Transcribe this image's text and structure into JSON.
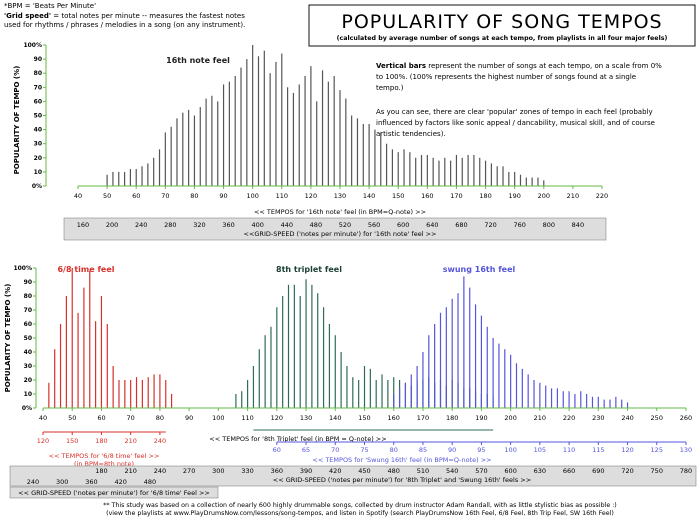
{
  "header": {
    "bpm_def": "*BPM = 'Beats Per Minute'",
    "grid_def_bold": "'Grid speed'",
    "grid_def_rest": " = total notes per minute -- measures the fastest notes",
    "grid_def_line2": "used for rhythms / phrases / melodies in a song (on any instrument).",
    "title": "POPULARITY OF SONG TEMPOS",
    "subtitle": "(calculated by average number of songs at each tempo, from playlists in all four major feels)"
  },
  "description": {
    "para1_bold": "Vertical bars",
    "para1_lines": [
      " represent the number of songs at each tempo, on a scale from 0%",
      "to 100%. (100% represents the highest number of songs found at a single",
      "tempo.)"
    ],
    "para2_lines": [
      "As you can see, there are clear 'popular' zones of tempo in each feel (probably",
      "influenced by factors like sonic appeal / dancability, musical skill, and of course",
      "artistic tendencies)."
    ]
  },
  "colors": {
    "sixteenth": "#555555",
    "six_eight": "#d8302a",
    "triplet": "#2f6b5a",
    "swung": "#5555dd",
    "axis_green": "#66bb44",
    "grid_box": "#dddddd"
  },
  "footer": {
    "line1": "** This study was based on a collection of nearly 600 highly drummable songs, collected by drum instructor Adam Randall, with as little stylistic bias as possible :)",
    "line2": "(view the playlists at www.PlayDrumsNow.com/lessons/song-tempos, and listen in Spotify (search PlayDrumsNow 16th Feel, 6/8 Feel, 8th Trip Feel, SW 16th Feel)"
  },
  "chart_data": [
    {
      "type": "bar",
      "title": "16th note feel",
      "ylabel": "POPULARITY OF TEMPO (%)",
      "xlabel": "<< TEMPOS for '16th note' feel (in BPM=Q-note) >>",
      "xlim": [
        40,
        220
      ],
      "ylim": [
        0,
        100
      ],
      "x_ticks": [
        40,
        50,
        60,
        70,
        80,
        90,
        100,
        110,
        120,
        130,
        140,
        150,
        160,
        170,
        180,
        190,
        200,
        210,
        220
      ],
      "y_ticks": [
        "0%",
        "10",
        "20",
        "30",
        "40",
        "50",
        "60",
        "70",
        "80",
        "90",
        "100%"
      ],
      "grid_speed_label": "<<GRID-SPEED ('notes per minute') for '16th note' feel >>",
      "grid_speed_ticks": [
        "160",
        "200",
        "240",
        "280",
        "320",
        "360",
        "400",
        "440",
        "480",
        "520",
        "560",
        "600",
        "640",
        "680",
        "720",
        "760",
        "800",
        "840"
      ],
      "grid_speed_tempos": [
        40,
        50,
        60,
        70,
        80,
        90,
        100,
        110,
        120,
        130,
        140,
        150,
        160,
        170,
        180,
        190,
        200,
        210
      ],
      "color": "#555555",
      "x": [
        50,
        52,
        54,
        56,
        58,
        60,
        62,
        64,
        66,
        68,
        70,
        72,
        74,
        76,
        78,
        80,
        82,
        84,
        86,
        88,
        90,
        92,
        94,
        96,
        98,
        100,
        102,
        104,
        106,
        108,
        110,
        112,
        114,
        116,
        118,
        120,
        122,
        124,
        126,
        128,
        130,
        132,
        134,
        136,
        138,
        140,
        142,
        144,
        146,
        148,
        150,
        152,
        154,
        156,
        158,
        160,
        162,
        164,
        166,
        168,
        170,
        172,
        174,
        176,
        178,
        180,
        182,
        184,
        186,
        188,
        190,
        192,
        194,
        196,
        198,
        200
      ],
      "values": [
        8,
        10,
        10,
        10,
        12,
        12,
        14,
        16,
        20,
        26,
        38,
        42,
        48,
        52,
        54,
        50,
        56,
        62,
        64,
        60,
        72,
        74,
        78,
        84,
        90,
        100,
        92,
        96,
        80,
        88,
        94,
        70,
        66,
        72,
        78,
        85,
        60,
        82,
        74,
        78,
        68,
        62,
        50,
        48,
        44,
        44,
        40,
        38,
        30,
        26,
        24,
        26,
        24,
        20,
        22,
        22,
        20,
        18,
        20,
        18,
        22,
        20,
        22,
        22,
        20,
        18,
        16,
        14,
        14,
        10,
        10,
        8,
        6,
        6,
        6,
        4
      ]
    },
    {
      "type": "bar",
      "ylabel": "POPULARITY OF TEMPO (%)",
      "xlim": [
        40,
        260
      ],
      "ylim": [
        0,
        100
      ],
      "x_ticks": [
        40,
        50,
        60,
        70,
        80,
        90,
        100,
        110,
        120,
        130,
        140,
        150,
        160,
        170,
        180,
        190,
        200,
        210,
        220,
        230,
        240,
        250,
        260
      ],
      "y_ticks": [
        "0%",
        "10",
        "20",
        "30",
        "40",
        "50",
        "60",
        "70",
        "80",
        "90",
        "100%"
      ],
      "series": [
        {
          "name": "6/8 time feel",
          "color": "#d8302a",
          "xlabel": "<< TEMPOS for '6/8 time' feel >>",
          "xlabel2": "(in BPM=8th note)",
          "axis_ticks": [
            "120",
            "150",
            "180",
            "210",
            "240"
          ],
          "axis_tempos": [
            40,
            50,
            60,
            70,
            80
          ],
          "grid_speed_ticks": [
            "240",
            "300",
            "360",
            "420",
            "480"
          ],
          "grid_speed_label": "<< GRID-SPEED ('notes per minute') for '6/8 time' Feel >>",
          "x": [
            42,
            44,
            46,
            48,
            50,
            52,
            54,
            56,
            58,
            60,
            62,
            64,
            66,
            68,
            70,
            72,
            74,
            76,
            78,
            80,
            82,
            84
          ],
          "values": [
            18,
            42,
            60,
            80,
            100,
            68,
            86,
            98,
            62,
            80,
            60,
            30,
            20,
            20,
            20,
            22,
            20,
            22,
            24,
            24,
            20,
            10
          ]
        },
        {
          "name": "8th triplet feel",
          "color": "#2f6b5a",
          "xlabel": "<< TEMPOS for '8th Triplet' feel (in BPM = Q-note) >>",
          "x": [
            106,
            108,
            110,
            112,
            114,
            116,
            118,
            120,
            122,
            124,
            126,
            128,
            130,
            132,
            134,
            136,
            138,
            140,
            142,
            144,
            146,
            148,
            150,
            152,
            154,
            156,
            158,
            160,
            162,
            164,
            166,
            168,
            170,
            172,
            174,
            176,
            178,
            180,
            182,
            184,
            186,
            188,
            190,
            192,
            194
          ],
          "values": [
            10,
            12,
            20,
            30,
            42,
            52,
            58,
            72,
            80,
            88,
            88,
            80,
            92,
            88,
            82,
            72,
            60,
            52,
            40,
            30,
            22,
            20,
            30,
            28,
            20,
            24,
            20,
            22,
            20,
            18,
            16,
            20,
            20,
            22,
            18,
            20,
            16,
            20,
            18,
            14,
            14,
            12,
            10,
            10,
            8
          ]
        },
        {
          "name": "swung 16th feel",
          "color": "#5555dd",
          "xlabel": "<< TEMPOS for 'Swung 16th' feel (in BPM=Q-note) >>",
          "axis_ticks": [
            "60",
            "65",
            "70",
            "75",
            "80",
            "85",
            "90",
            "95",
            "100",
            "105",
            "110",
            "115",
            "120",
            "125",
            "130"
          ],
          "axis_tempos": [
            120,
            130,
            140,
            150,
            160,
            170,
            180,
            190,
            200,
            210,
            220,
            230,
            240,
            250,
            260
          ],
          "x": [
            160,
            162,
            164,
            166,
            168,
            170,
            172,
            174,
            176,
            178,
            180,
            182,
            184,
            186,
            188,
            190,
            192,
            194,
            196,
            198,
            200,
            202,
            204,
            206,
            208,
            210,
            212,
            214,
            216,
            218,
            220,
            222,
            224,
            226,
            228,
            230,
            232,
            234,
            236,
            238,
            240
          ],
          "values": [
            10,
            14,
            18,
            24,
            30,
            40,
            52,
            60,
            68,
            72,
            78,
            82,
            94,
            86,
            74,
            66,
            58,
            50,
            46,
            42,
            38,
            32,
            28,
            24,
            20,
            18,
            16,
            14,
            14,
            12,
            12,
            10,
            12,
            10,
            8,
            8,
            6,
            6,
            8,
            6,
            4
          ]
        }
      ],
      "combined_grid_speed_ticks": [
        "180",
        "210",
        "240",
        "270",
        "300",
        "330",
        "360",
        "390",
        "420",
        "450",
        "480",
        "510",
        "540",
        "570",
        "600",
        "630",
        "660",
        "690",
        "720",
        "750",
        "780"
      ],
      "combined_grid_speed_tempos": [
        60,
        70,
        80,
        90,
        100,
        110,
        120,
        130,
        140,
        150,
        160,
        170,
        180,
        190,
        200,
        210,
        220,
        230,
        240,
        250,
        260
      ],
      "combined_grid_speed_label": "<< GRID-SPEED ('notes per minute') for '8th Triplet' and 'Swung 16th' feels >>"
    }
  ]
}
